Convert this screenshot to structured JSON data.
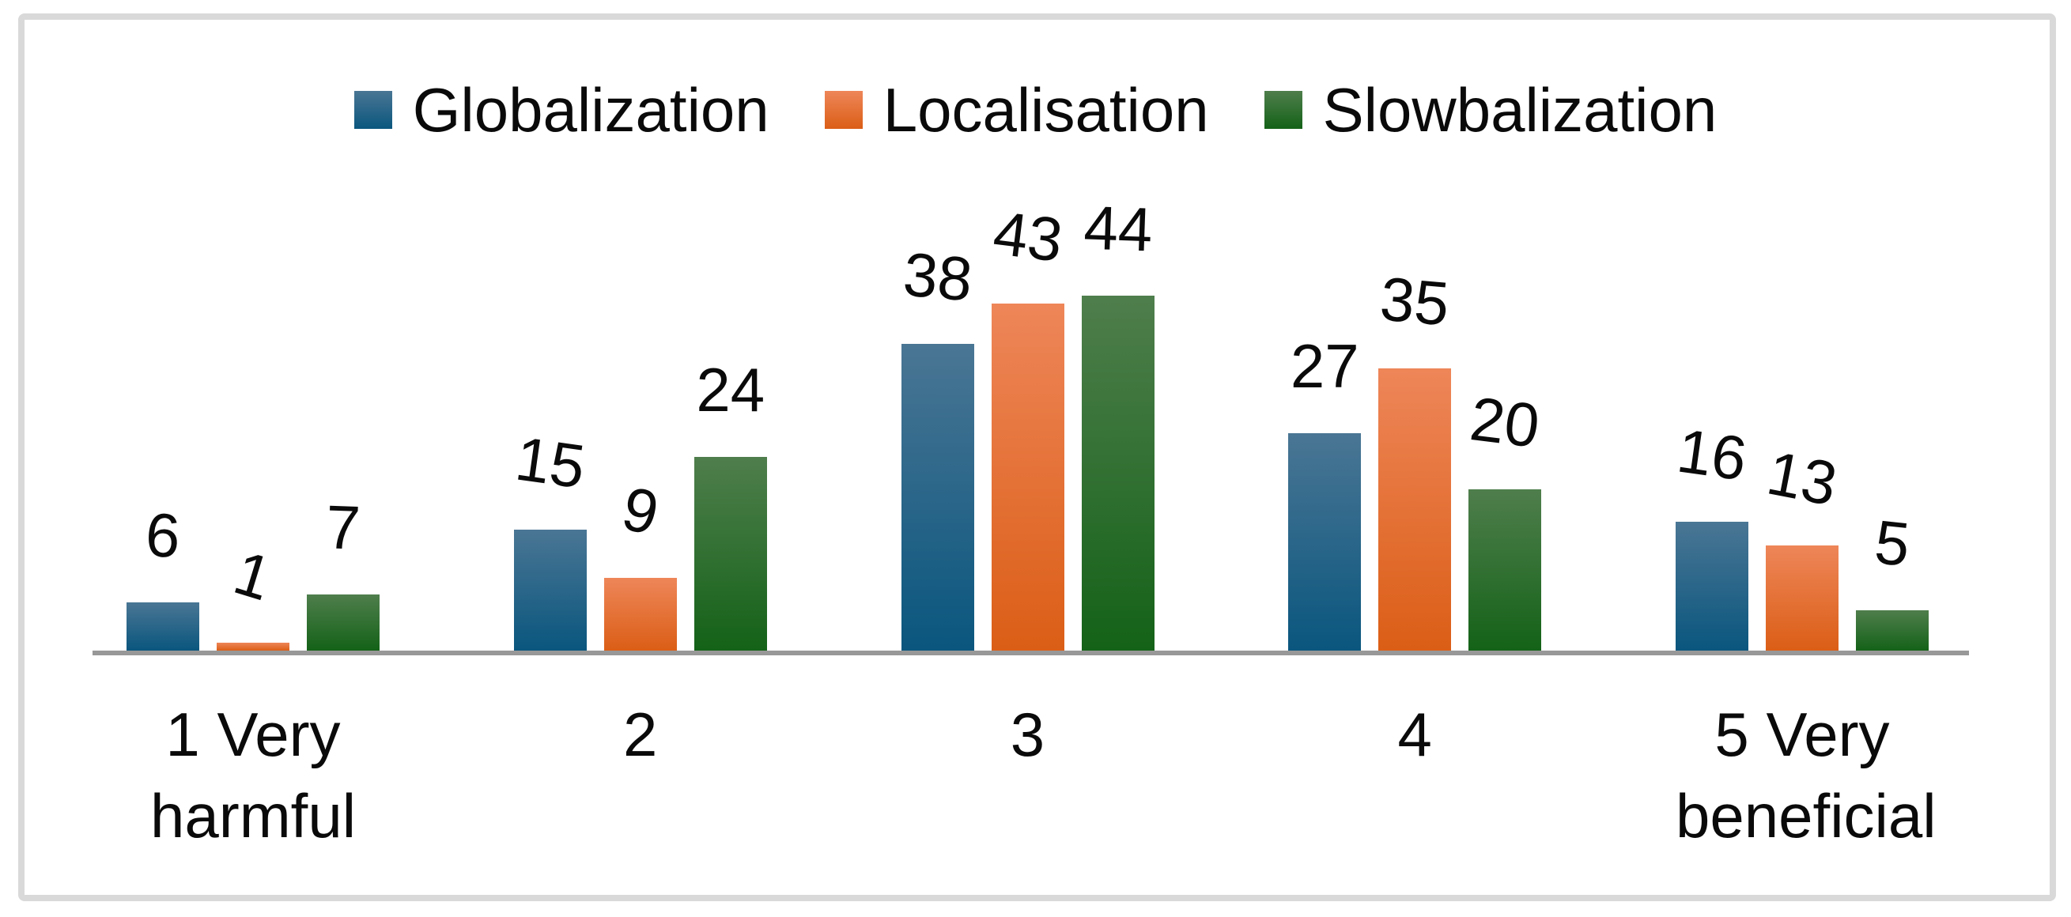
{
  "chart_data": {
    "type": "bar",
    "categories": [
      "1 Very harmful",
      "2",
      "3",
      "4",
      "5 Very beneficial"
    ],
    "series": [
      {
        "name": "Globalization",
        "color_top": "#4a7694",
        "color_bottom": "#0a567e",
        "values": [
          6,
          15,
          38,
          27,
          16
        ]
      },
      {
        "name": "Localisation",
        "color_top": "#ee8659",
        "color_bottom": "#db5e16",
        "values": [
          1,
          9,
          43,
          35,
          13
        ]
      },
      {
        "name": "Slowbalization",
        "color_top": "#4f7e4c",
        "color_bottom": "#146218",
        "values": [
          7,
          24,
          44,
          20,
          5
        ]
      }
    ],
    "title": "",
    "xlabel": "",
    "ylabel": "",
    "ylim": [
      0,
      46
    ],
    "grid": false,
    "legend_position": "top-center",
    "data_labels": true
  },
  "colors": {
    "background": "#ffffff",
    "frame_border": "#d9d9d9",
    "axis_line": "#989898",
    "label_text": "#0a0a0a"
  }
}
